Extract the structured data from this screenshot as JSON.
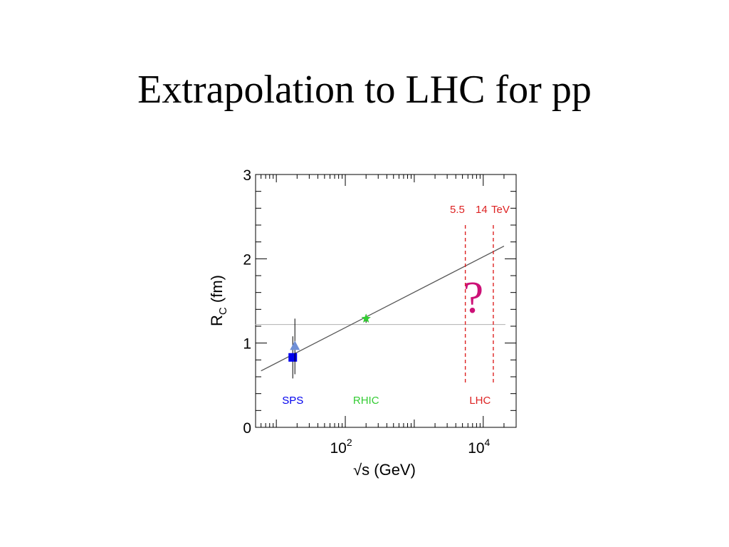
{
  "slide": {
    "title": "Extrapolation to LHC for pp"
  },
  "chart_data": {
    "type": "scatter",
    "title": "",
    "xlabel": {
      "prefix": "√s",
      "suffix": " (GeV)"
    },
    "ylabel": {
      "base": "R",
      "sub": "C",
      "rest": " (fm)"
    },
    "xscale": "log",
    "xlim": [
      5,
      30000
    ],
    "ylim": [
      0,
      3
    ],
    "x_ticks": [
      {
        "base": "10",
        "exp": "2",
        "value": 100
      },
      {
        "base": "10",
        "exp": "4",
        "value": 10000
      }
    ],
    "y_ticks": [
      "0",
      "1",
      "2",
      "3"
    ],
    "grid": false,
    "series": [
      {
        "marker": "square",
        "color": "#0000ee",
        "x": 17.3,
        "y": 0.83,
        "yerr": 0.25
      },
      {
        "marker": "triangle",
        "color": "#6f8fd6",
        "x": 17.3,
        "y": 0.96,
        "yerr": 0.33
      },
      {
        "marker": "star",
        "color": "#33cc33",
        "x": 200,
        "y": 1.29,
        "yerr": 0.05
      }
    ],
    "fit_line": {
      "color": "#555555",
      "x": [
        6,
        20000
      ],
      "y": [
        0.67,
        2.15
      ]
    },
    "reference_line": {
      "color": "#b0b0b0",
      "y": 1.22,
      "x": [
        6,
        20000
      ]
    },
    "lhc_lines": {
      "color": "#dd2222",
      "x": [
        5500,
        14000
      ],
      "y_range": [
        0.5,
        2.4
      ]
    },
    "energy_labels": {
      "left": "5.5",
      "right": "14",
      "unit": "TeV",
      "color": "#dd2222"
    },
    "question_mark": {
      "text": "?",
      "color": "#cc1177",
      "x": 7200,
      "y": 1.55
    },
    "regions": [
      {
        "label": "SPS",
        "color": "#0000ee",
        "x": 17.3
      },
      {
        "label": "RHIC",
        "color": "#33cc33",
        "x": 200
      },
      {
        "label": "LHC",
        "color": "#dd2222",
        "x": 9000
      }
    ],
    "region_label_y": 0.32
  }
}
